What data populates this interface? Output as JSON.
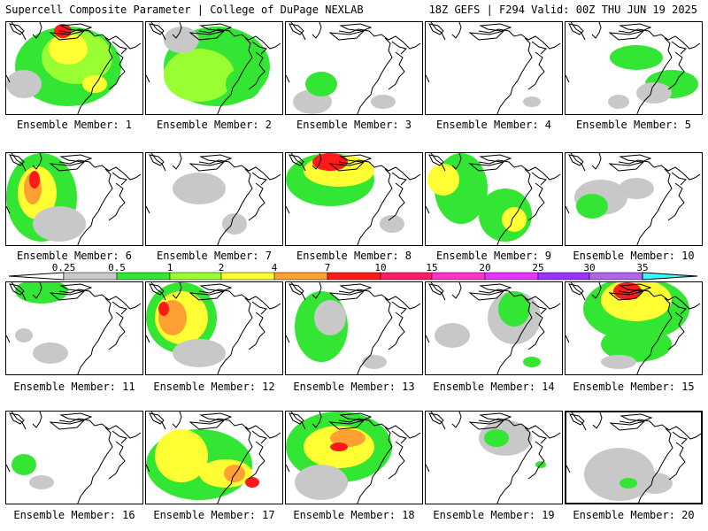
{
  "header": {
    "title": "Supercell Composite Parameter | College of DuPage NEXLAB",
    "run_info": "18Z GEFS | F294 Valid: 00Z THU JUN 19 2025"
  },
  "colorbar": {
    "labels": [
      "0.25",
      "0.5",
      "1",
      "2",
      "4",
      "7",
      "10",
      "15",
      "20",
      "25",
      "30",
      "35"
    ],
    "colors": [
      "#c8c8c8",
      "#33e633",
      "#99ff33",
      "#ffff33",
      "#ffa033",
      "#ff1a1a",
      "#ff1a6a",
      "#ff33cc",
      "#e633ff",
      "#9933ff",
      "#b266e6",
      "#33ffff"
    ]
  },
  "members": [
    {
      "label": "Ensemble Member: 1"
    },
    {
      "label": "Ensemble Member: 2"
    },
    {
      "label": "Ensemble Member: 3"
    },
    {
      "label": "Ensemble Member: 4"
    },
    {
      "label": "Ensemble Member: 5"
    },
    {
      "label": "Ensemble Member: 6"
    },
    {
      "label": "Ensemble Member: 7"
    },
    {
      "label": "Ensemble Member: 8"
    },
    {
      "label": "Ensemble Member: 9"
    },
    {
      "label": "Ensemble Member: 10"
    },
    {
      "label": "Ensemble Member: 11"
    },
    {
      "label": "Ensemble Member: 12"
    },
    {
      "label": "Ensemble Member: 13"
    },
    {
      "label": "Ensemble Member: 14"
    },
    {
      "label": "Ensemble Member: 15"
    },
    {
      "label": "Ensemble Member: 16"
    },
    {
      "label": "Ensemble Member: 17"
    },
    {
      "label": "Ensemble Member: 18"
    },
    {
      "label": "Ensemble Member: 19"
    },
    {
      "label": "Ensemble Member: 20"
    }
  ]
}
